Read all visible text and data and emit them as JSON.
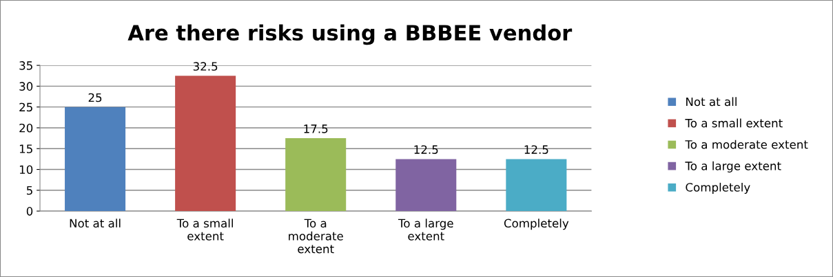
{
  "chart_data": {
    "type": "bar",
    "title": "Are there risks using a BBBEE vendor",
    "categories": [
      "Not at all",
      "To a small extent",
      "To a moderate extent",
      "To a large extent",
      "Completely"
    ],
    "series": [
      {
        "name": "Not at all",
        "color": "#4f81bd",
        "values": [
          25,
          null,
          null,
          null,
          null
        ]
      },
      {
        "name": "To a small extent",
        "color": "#c0504d",
        "values": [
          null,
          32.5,
          null,
          null,
          null
        ]
      },
      {
        "name": "To a moderate extent",
        "color": "#9bbb59",
        "values": [
          null,
          null,
          17.5,
          null,
          null
        ]
      },
      {
        "name": "To a large extent",
        "color": "#8064a2",
        "values": [
          null,
          null,
          null,
          12.5,
          null
        ]
      },
      {
        "name": "Completely",
        "color": "#4bacc6",
        "values": [
          null,
          null,
          null,
          null,
          12.5
        ]
      }
    ],
    "ylim": [
      0,
      35
    ],
    "yticks": [
      0,
      5,
      10,
      15,
      20,
      25,
      30,
      35
    ],
    "grid": "y",
    "legend": "right",
    "data_labels": true
  }
}
